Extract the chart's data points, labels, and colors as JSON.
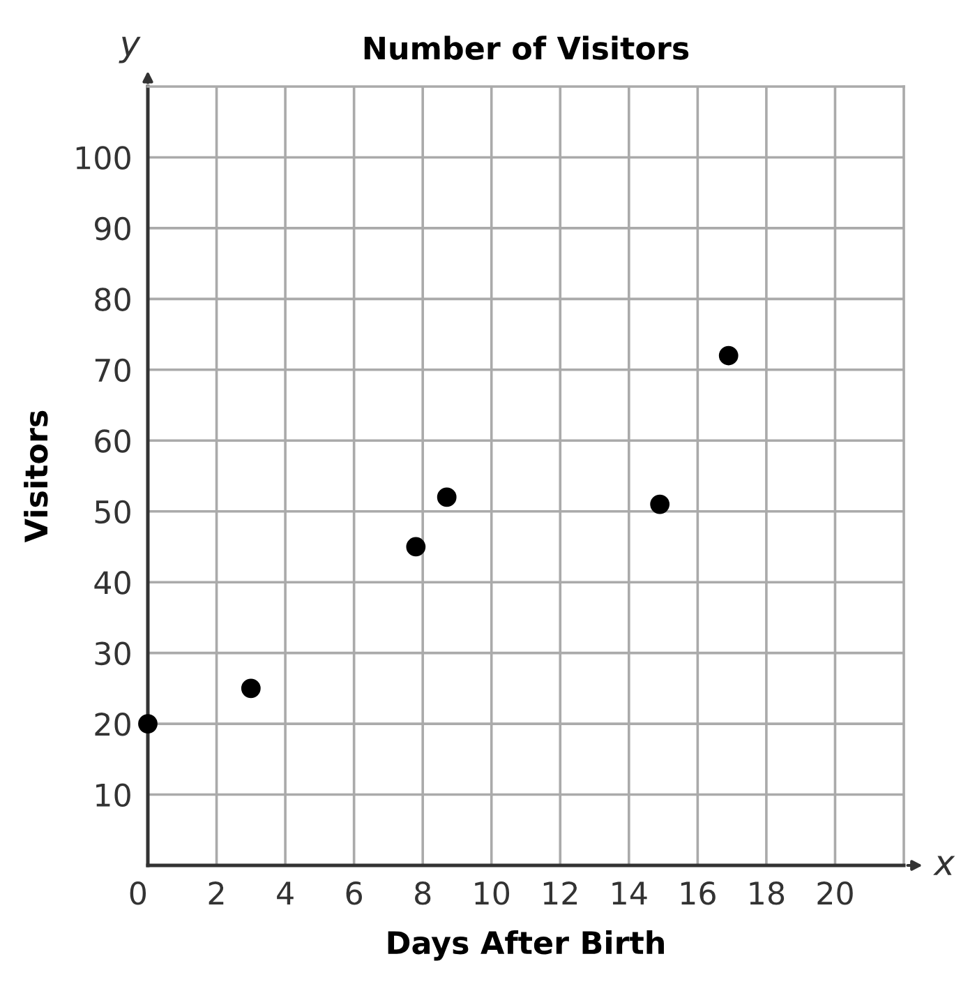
{
  "chart_data": {
    "type": "scatter",
    "title": "Number of Visitors",
    "xlabel": "Days After Birth",
    "ylabel": "Visitors",
    "x": [
      0,
      3,
      7.8,
      8.7,
      14.9,
      16.9
    ],
    "values": [
      20,
      25,
      45,
      52,
      51,
      72
    ],
    "color": "#000000",
    "marker": "circle",
    "xlim": [
      0,
      22
    ],
    "ylim": [
      0,
      110
    ],
    "xticks": [
      0,
      2,
      4,
      6,
      8,
      10,
      12,
      14,
      16,
      18,
      20
    ],
    "yticks": [
      {
        "value": 0,
        "label": null
      },
      10,
      20,
      30,
      40,
      50,
      60,
      70,
      80,
      90,
      100
    ],
    "grid": true,
    "legend": false,
    "annotations": [
      "x",
      "y"
    ]
  }
}
